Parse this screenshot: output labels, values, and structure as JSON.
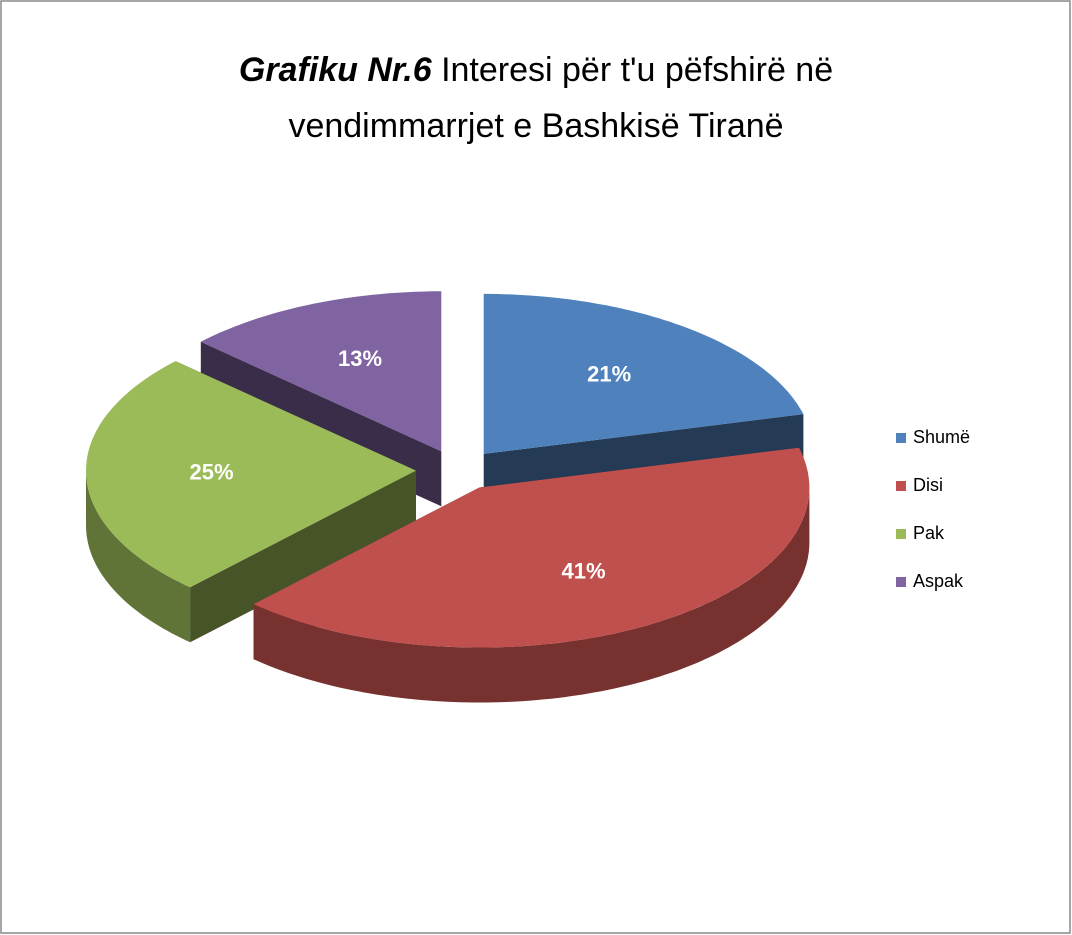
{
  "chart_data": {
    "type": "pie3d",
    "title": [
      "Grafiku Nr.6",
      "Interesi për t'u pëfshirë në",
      "vendimmarrjet e Bashkisë Tiranë"
    ],
    "categories": [
      "Shumë",
      "Disi",
      "Pak",
      "Aspak"
    ],
    "values": [
      21,
      41,
      25,
      13
    ],
    "value_labels": [
      "21%",
      "41%",
      "25%",
      "13%"
    ],
    "colors": [
      "#4f81bd",
      "#c0504d",
      "#9bbb59",
      "#8064a2"
    ],
    "legend": "right"
  }
}
